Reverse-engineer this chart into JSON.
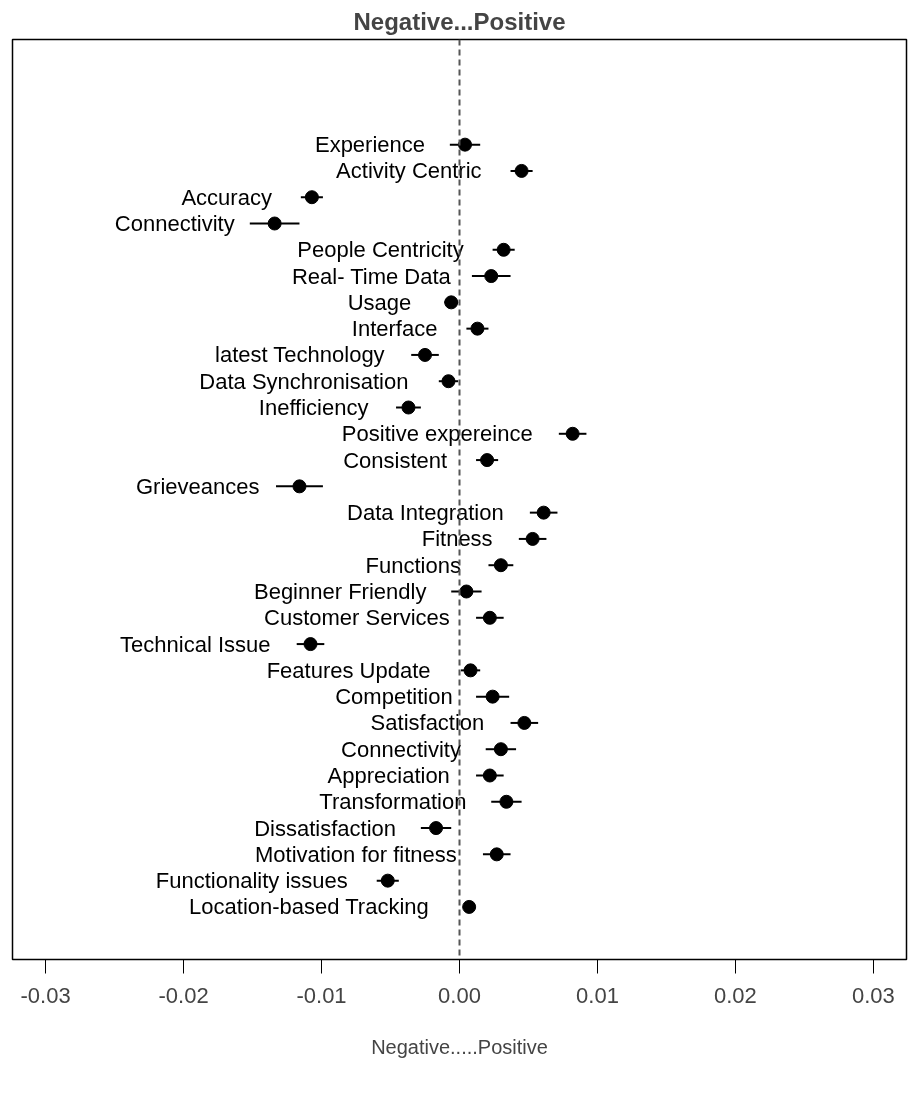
{
  "chart_data": {
    "type": "scatter",
    "orientation": "horizontal",
    "title": "Negative...Positive",
    "xlabel": "Negative.....Positive",
    "categories": [
      "Experience",
      "Activity Centric",
      "Accuracy",
      "Connectivity",
      "People Centricity",
      "Real- Time Data",
      "Usage",
      "Interface",
      "latest Technology",
      "Data Synchronisation",
      "Inefficiency",
      "Positive expereince",
      "Consistent",
      "Grieveances",
      "Data Integration",
      "Fitness",
      "Functions",
      "Beginner Friendly",
      "Customer Services",
      "Technical Issue",
      "Features Update",
      "Competition",
      "Satisfaction",
      "Connectivity",
      "Appreciation",
      "Transformation",
      "Dissatisfaction",
      "Motivation for fitness",
      "Functionality issues",
      "Location-based Tracking"
    ],
    "values": [
      0.0004,
      0.0045,
      -0.0107,
      -0.0134,
      0.0032,
      0.0023,
      -0.0006,
      0.0013,
      -0.0025,
      -0.0008,
      -0.0037,
      0.0082,
      0.002,
      -0.0116,
      0.0061,
      0.0053,
      0.003,
      0.0005,
      0.0022,
      -0.0108,
      0.0008,
      0.0024,
      0.0047,
      0.003,
      0.0022,
      0.0034,
      -0.0017,
      0.0027,
      -0.0052,
      0.0007
    ],
    "errors": [
      0.0011,
      0.0008,
      0.0008,
      0.0018,
      0.0008,
      0.0014,
      0.0005,
      0.0008,
      0.001,
      0.0007,
      0.0009,
      0.001,
      0.0008,
      0.0017,
      0.001,
      0.001,
      0.0009,
      0.0011,
      0.001,
      0.001,
      0.0007,
      0.0012,
      0.001,
      0.0011,
      0.001,
      0.0011,
      0.0011,
      0.001,
      0.0008,
      null
    ],
    "color": "#000000",
    "marker": "circle",
    "grid": false,
    "tick_labels": "x",
    "xlim": [
      -0.0324,
      0.0324
    ],
    "xticks": [
      {
        "value": -0.03,
        "label": "-0.03"
      },
      {
        "value": -0.02,
        "label": "-0.02"
      },
      {
        "value": -0.01,
        "label": "-0.01"
      },
      {
        "value": 0,
        "label": "0.00"
      },
      {
        "value": 0.01,
        "label": "0.01"
      },
      {
        "value": 0.02,
        "label": "0.02"
      },
      {
        "value": 0.03,
        "label": "0.03"
      }
    ],
    "ref_lines": [
      {
        "axis": "x",
        "value": 0,
        "color": "#555555",
        "line_style": "dashed"
      }
    ]
  }
}
